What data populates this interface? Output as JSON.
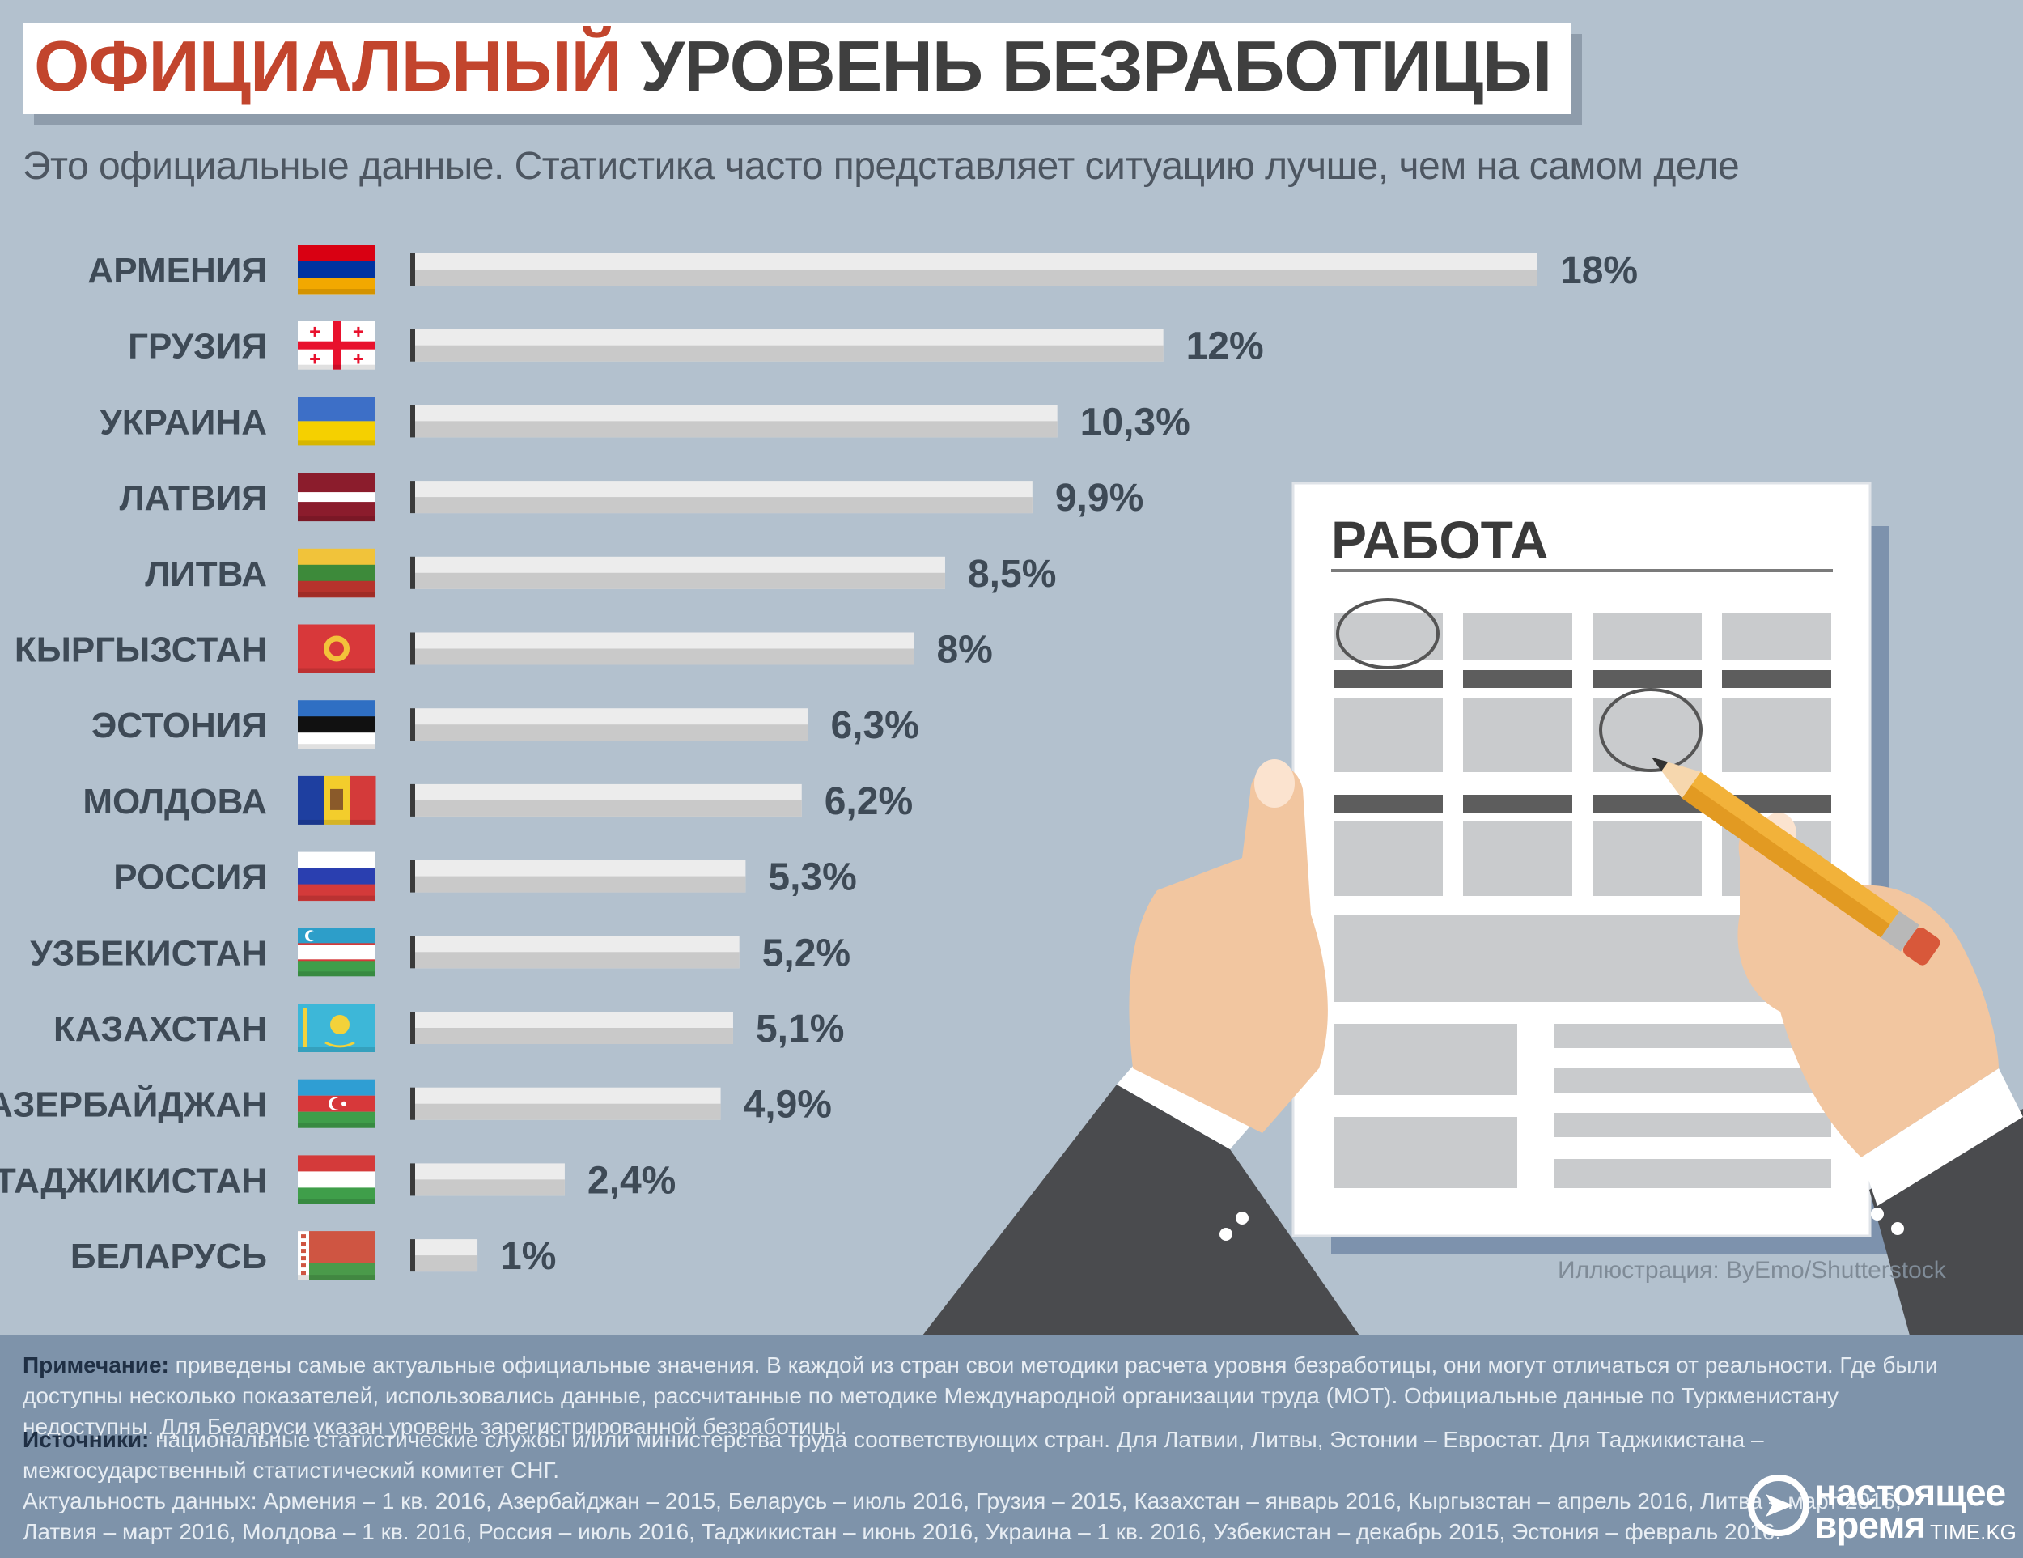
{
  "title": {
    "accent": "ОФИЦИАЛЬНЫЙ",
    "rest": "УРОВЕНЬ БЕЗРАБОТИЦЫ"
  },
  "subtitle": "Это официальные данные. Статистика часто представляет ситуацию лучше, чем на самом деле",
  "chart_data": {
    "type": "bar",
    "orientation": "horizontal",
    "title": "ОФИЦИАЛЬНЫЙ УРОВЕНЬ БЕЗРАБОТИЦЫ",
    "categories": [
      "АРМЕНИЯ",
      "ГРУЗИЯ",
      "УКРАИНА",
      "ЛАТВИЯ",
      "ЛИТВА",
      "КЫРГЫЗСТАН",
      "ЭСТОНИЯ",
      "МОЛДОВА",
      "РОССИЯ",
      "УЗБЕКИСТАН",
      "КАЗАХСТАН",
      "АЗЕРБАЙДЖАН",
      "ТАДЖИКИСТАН",
      "БЕЛАРУСЬ"
    ],
    "values": [
      18,
      12,
      10.3,
      9.9,
      8.5,
      8,
      6.3,
      6.2,
      5.3,
      5.2,
      5.1,
      4.9,
      2.4,
      1
    ],
    "value_labels": [
      "18%",
      "12%",
      "10,3%",
      "9,9%",
      "8,5%",
      "8%",
      "6,3%",
      "6,2%",
      "5,3%",
      "5,2%",
      "5,1%",
      "4,9%",
      "2,4%",
      "1%"
    ],
    "unit": "%",
    "xlim": [
      0,
      18
    ],
    "grid": false,
    "legend": "none"
  },
  "flags": [
    {
      "name": "armenia-flag",
      "type": "h3",
      "colors": [
        "#d90012",
        "#0033a0",
        "#f2a800"
      ]
    },
    {
      "name": "georgia-flag",
      "type": "georgia",
      "colors": [
        "#ffffff",
        "#e8112d"
      ]
    },
    {
      "name": "ukraine-flag",
      "type": "h2",
      "colors": [
        "#3d6fc7",
        "#f5d000"
      ]
    },
    {
      "name": "latvia-flag",
      "type": "latvia",
      "colors": [
        "#8b1c2c",
        "#ffffff"
      ]
    },
    {
      "name": "lithuania-flag",
      "type": "h3",
      "colors": [
        "#f1c33a",
        "#3d8a3a",
        "#b7332c"
      ]
    },
    {
      "name": "kyrgyzstan-flag",
      "type": "kyrgyz",
      "colors": [
        "#d8383a",
        "#f3c23a"
      ]
    },
    {
      "name": "estonia-flag",
      "type": "h3",
      "colors": [
        "#2f6fc3",
        "#111111",
        "#ffffff"
      ]
    },
    {
      "name": "moldova-flag",
      "type": "v3",
      "colors": [
        "#1e3fa0",
        "#f3cd2c",
        "#d43a3a"
      ]
    },
    {
      "name": "russia-flag",
      "type": "h3",
      "colors": [
        "#ffffff",
        "#2a3fb0",
        "#d43a3a"
      ]
    },
    {
      "name": "uzbekistan-flag",
      "type": "uzbek",
      "colors": [
        "#2d9ec9",
        "#ffffff",
        "#3f9e4a"
      ]
    },
    {
      "name": "kazakhstan-flag",
      "type": "kazakh",
      "colors": [
        "#3db7d8",
        "#f3d23a"
      ]
    },
    {
      "name": "azerbaijan-flag",
      "type": "azer",
      "colors": [
        "#2f9ed3",
        "#d7383a",
        "#3f9e4a"
      ]
    },
    {
      "name": "tajikistan-flag",
      "type": "h3",
      "colors": [
        "#d43a3a",
        "#ffffff",
        "#3f9e4a"
      ]
    },
    {
      "name": "belarus-flag",
      "type": "belarus",
      "colors": [
        "#cf5542",
        "#4a9a4a",
        "#ffffff"
      ]
    }
  ],
  "illustration": {
    "document_title": "РАБОТА",
    "credit": "Иллюстрация: ByEmo/Shutterstock"
  },
  "footer": {
    "note_label": "Примечание:",
    "note_text": " приведены самые актуальные официальные значения. В каждой из стран свои методики расчета уровня безработицы, они могут отличаться от реальности. Где были доступны несколько показателей, использовались данные, рассчитанные по методике Международной организации труда (МОТ). Официальные данные по Туркменистану недоступны. Для Беларуси указан уровень зарегистрированной безработицы.",
    "sources_label": "Источники:",
    "sources_text": " национальные статистические службы и/или министерства труда соответствующих стран. Для Латвии, Литвы, Эстонии – Евростат. Для Таджикистана – межгосударственный статистический комитет СНГ.",
    "actuality_line1": "Актуальность данных: Армения – 1 кв. 2016, Азербайджан – 2015, Беларусь – июль 2016, Грузия – 2015, Казахстан – январь 2016, Кыргызстан – апрель 2016, Литва – март 2016,",
    "actuality_line2": "Латвия – март 2016, Молдова – 1 кв. 2016, Россия – июль 2016, Таджикистан – июнь 2016, Украина – 1 кв. 2016, Узбекистан – декабрь 2015, Эстония – февраль 2016."
  },
  "logo": {
    "text_line1": "настоящее",
    "text_line2": "время",
    "small": "TIME.KG"
  },
  "colors": {
    "background": "#b3c1ce",
    "accent": "#c2452d",
    "bar": "#ececec",
    "bar_shadow": "#c9c9c9",
    "text": "#3e4a56",
    "footer": "#7e93aa"
  }
}
